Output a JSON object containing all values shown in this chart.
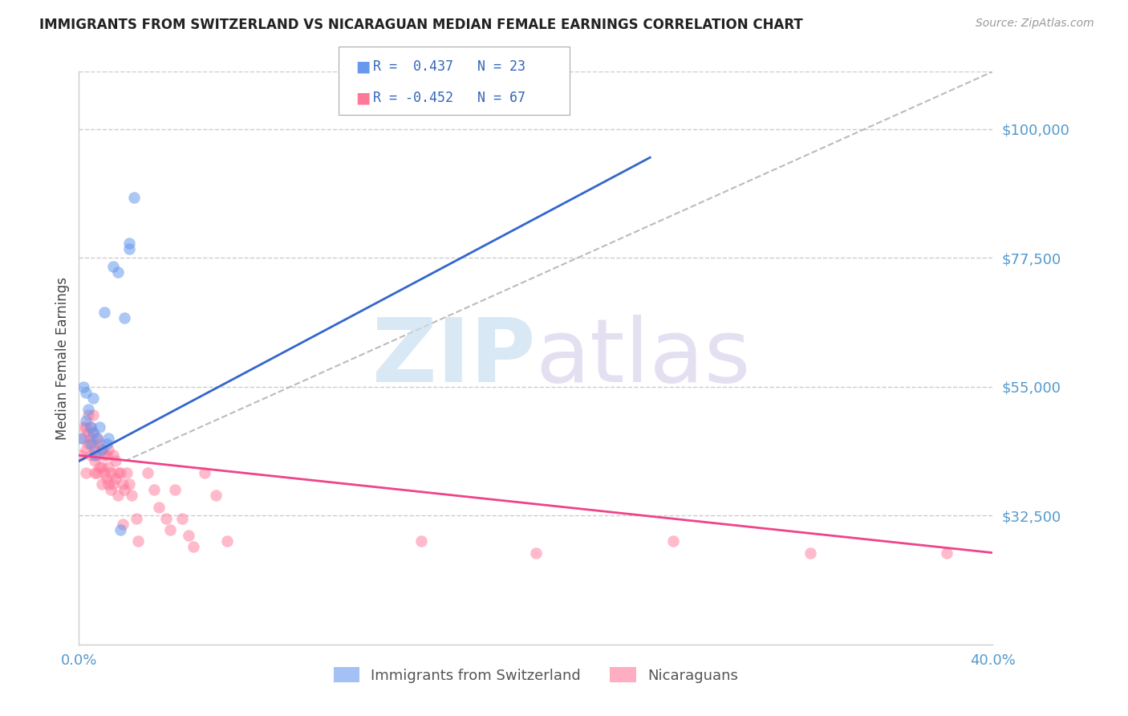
{
  "title": "IMMIGRANTS FROM SWITZERLAND VS NICARAGUAN MEDIAN FEMALE EARNINGS CORRELATION CHART",
  "source": "Source: ZipAtlas.com",
  "ylabel_label": "Median Female Earnings",
  "x_min": 0.0,
  "x_max": 0.4,
  "y_min": 10000,
  "y_max": 110000,
  "yticks": [
    32500,
    55000,
    77500,
    100000
  ],
  "ytick_labels": [
    "$32,500",
    "$55,000",
    "$77,500",
    "$100,000"
  ],
  "xtick_positions": [
    0.0,
    0.1,
    0.2,
    0.3,
    0.4
  ],
  "xtick_labels": [
    "0.0%",
    "",
    "",
    "",
    "40.0%"
  ],
  "swiss_color": "#6699ee",
  "nic_color": "#ff7799",
  "swiss_line_color": "#3366cc",
  "nic_line_color": "#ee4488",
  "swiss_R": 0.437,
  "swiss_N": 23,
  "nic_R": -0.452,
  "nic_N": 67,
  "swiss_x": [
    0.001,
    0.002,
    0.003,
    0.003,
    0.004,
    0.005,
    0.005,
    0.006,
    0.006,
    0.007,
    0.008,
    0.009,
    0.01,
    0.011,
    0.012,
    0.013,
    0.015,
    0.017,
    0.018,
    0.02,
    0.022,
    0.022,
    0.024
  ],
  "swiss_y": [
    46000,
    55000,
    49000,
    54000,
    51000,
    48000,
    45000,
    53000,
    47000,
    43000,
    46000,
    48000,
    44000,
    68000,
    45000,
    46000,
    76000,
    75000,
    30000,
    67000,
    79000,
    80000,
    88000
  ],
  "nic_x": [
    0.001,
    0.002,
    0.002,
    0.003,
    0.003,
    0.003,
    0.004,
    0.004,
    0.004,
    0.005,
    0.005,
    0.005,
    0.006,
    0.006,
    0.006,
    0.007,
    0.007,
    0.007,
    0.008,
    0.008,
    0.008,
    0.009,
    0.009,
    0.01,
    0.01,
    0.01,
    0.011,
    0.011,
    0.012,
    0.012,
    0.013,
    0.013,
    0.013,
    0.014,
    0.014,
    0.015,
    0.015,
    0.016,
    0.016,
    0.017,
    0.017,
    0.018,
    0.019,
    0.019,
    0.02,
    0.021,
    0.022,
    0.023,
    0.025,
    0.026,
    0.03,
    0.033,
    0.035,
    0.038,
    0.04,
    0.042,
    0.045,
    0.048,
    0.05,
    0.055,
    0.06,
    0.065,
    0.15,
    0.2,
    0.26,
    0.32,
    0.38
  ],
  "nic_y": [
    43000,
    48000,
    46000,
    48000,
    44000,
    40000,
    50000,
    47000,
    45000,
    48000,
    46000,
    43000,
    50000,
    47000,
    45000,
    44000,
    42000,
    40000,
    46000,
    43000,
    40000,
    45000,
    41000,
    44000,
    41000,
    38000,
    43000,
    40000,
    43000,
    39000,
    44000,
    41000,
    38000,
    40000,
    37000,
    43000,
    38000,
    42000,
    39000,
    40000,
    36000,
    40000,
    38000,
    31000,
    37000,
    40000,
    38000,
    36000,
    32000,
    28000,
    40000,
    37000,
    34000,
    32000,
    30000,
    37000,
    32000,
    29000,
    27000,
    40000,
    36000,
    28000,
    28000,
    26000,
    28000,
    26000,
    26000
  ],
  "swiss_regline_x": [
    0.0,
    0.25
  ],
  "swiss_regline_y": [
    42000,
    95000
  ],
  "nic_regline_x": [
    0.0,
    0.4
  ],
  "nic_regline_y": [
    43000,
    26000
  ],
  "dash_line_x": [
    0.02,
    0.4
  ],
  "dash_line_y": [
    42000,
    110000
  ],
  "legend_swiss_text": "R =  0.437   N = 23",
  "legend_nic_text": "R = -0.452   N = 67",
  "bottom_legend": [
    "Immigrants from Switzerland",
    "Nicaraguans"
  ]
}
